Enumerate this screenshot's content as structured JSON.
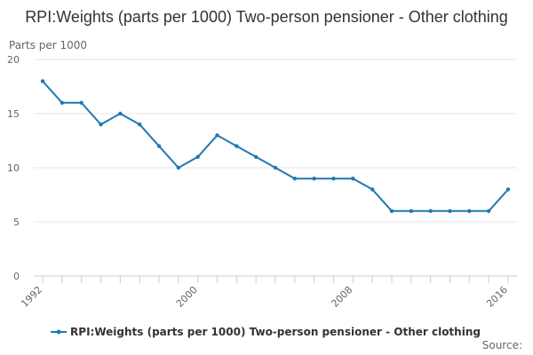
{
  "chart_data": {
    "type": "line",
    "title": "RPI:Weights (parts per 1000) Two-person pensioner - Other clothing",
    "ylabel": "Parts per 1000",
    "xlabel": "",
    "ylim": [
      0,
      20
    ],
    "yticks": [
      0,
      5,
      10,
      15,
      20
    ],
    "xlim": [
      1992,
      2016
    ],
    "xticks": [
      1992,
      2000,
      2008,
      2016
    ],
    "grid": true,
    "legend_position": "bottom",
    "series": [
      {
        "name": "RPI:Weights (parts per 1000) Two-person pensioner - Other clothing",
        "color": "#1f78b4",
        "x": [
          1992,
          1993,
          1994,
          1995,
          1996,
          1997,
          1998,
          1999,
          2000,
          2001,
          2002,
          2003,
          2004,
          2005,
          2006,
          2007,
          2008,
          2009,
          2010,
          2011,
          2012,
          2013,
          2014,
          2015,
          2016
        ],
        "y": [
          18,
          16,
          16,
          14,
          15,
          14,
          12,
          10,
          11,
          13,
          12,
          11,
          10,
          9,
          9,
          9,
          9,
          8,
          6,
          6,
          6,
          6,
          6,
          6,
          8
        ]
      }
    ]
  },
  "source_label": "Source:"
}
